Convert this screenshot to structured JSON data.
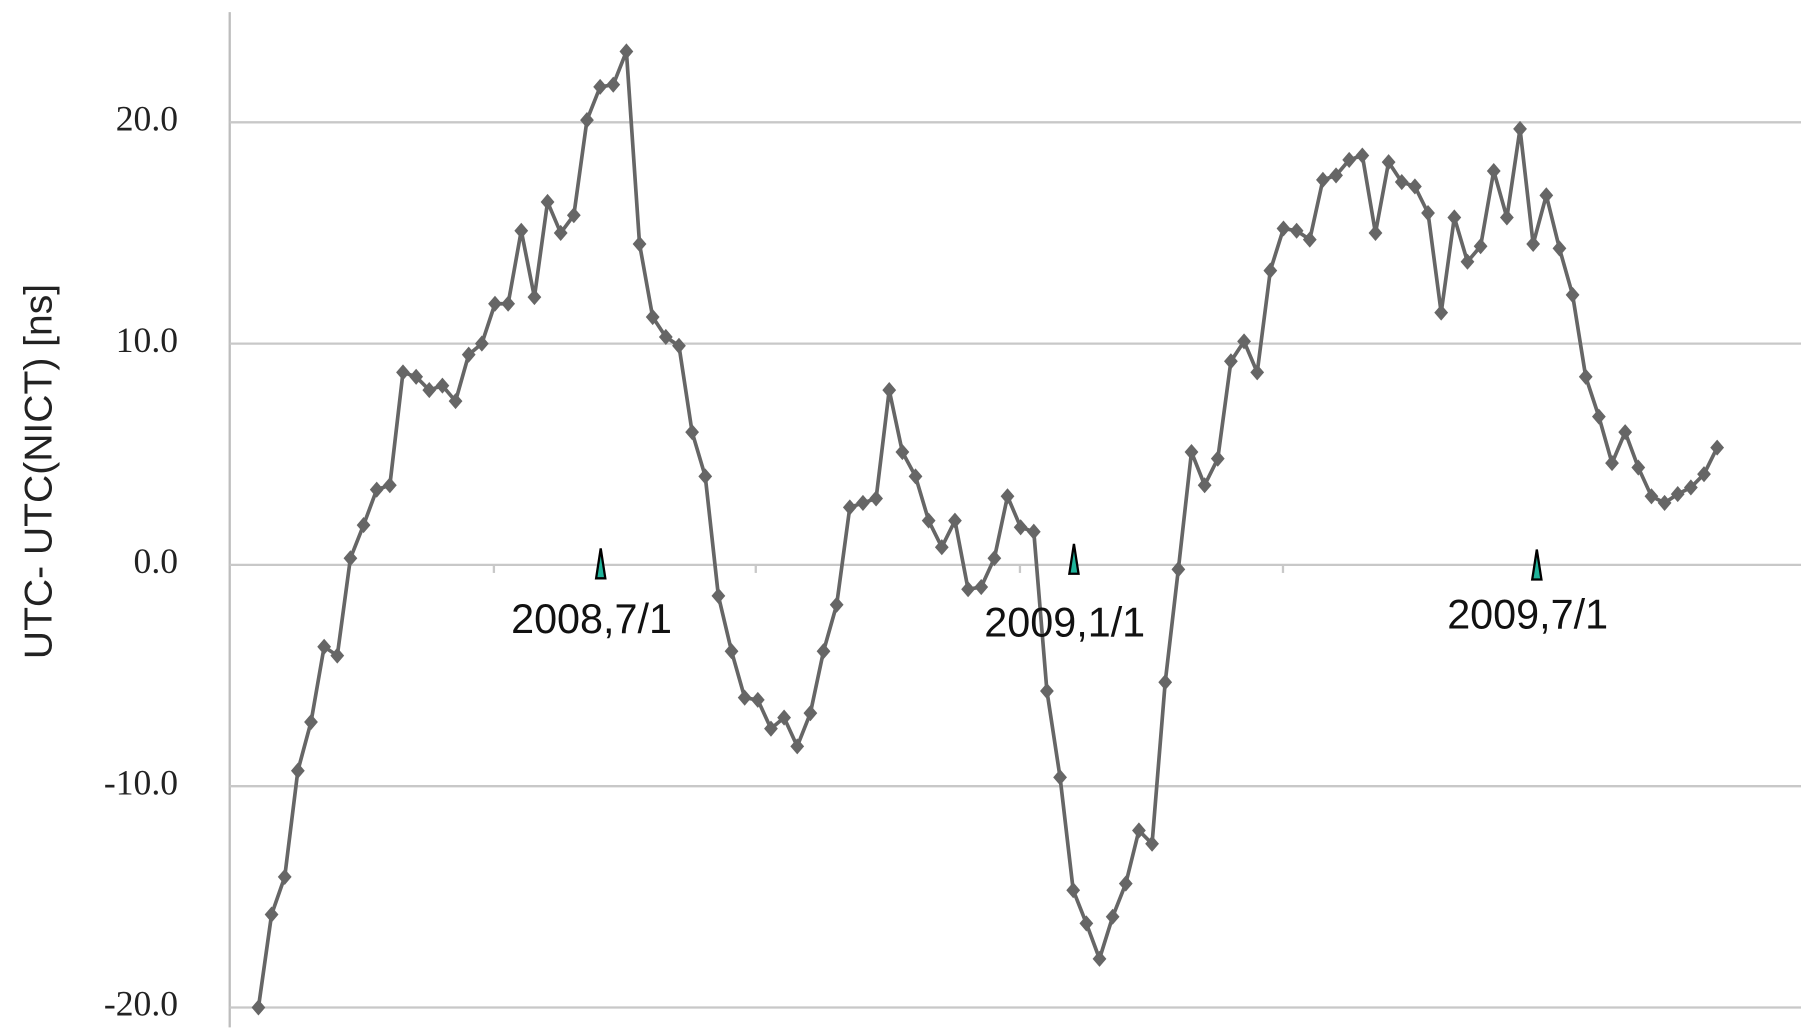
{
  "chart_data": {
    "type": "line",
    "ylabel": "UTC- UTC(NICT)  [ns]",
    "values": [
      -20,
      -15.8,
      -14.1,
      -9.3,
      -7.1,
      -3.7,
      -4.1,
      0.3,
      1.8,
      3.4,
      3.6,
      8.7,
      8.5,
      7.9,
      8.1,
      7.4,
      9.5,
      10,
      11.8,
      11.8,
      15.1,
      12.1,
      16.4,
      15,
      15.8,
      20.1,
      21.6,
      21.7,
      23.2,
      14.5,
      11.2,
      10.3,
      9.9,
      6,
      4,
      -1.4,
      -3.9,
      -6,
      -6.1,
      -7.4,
      -6.9,
      -8.2,
      -6.7,
      -3.9,
      -1.8,
      2.6,
      2.8,
      3,
      7.9,
      5.1,
      4,
      2,
      0.8,
      2,
      -1.1,
      -1,
      0.3,
      3.1,
      1.7,
      1.5,
      -5.7,
      -9.6,
      -14.7,
      -16.2,
      -17.8,
      -15.9,
      -14.4,
      -12,
      -12.6,
      -5.3,
      -0.2,
      5.1,
      3.6,
      4.8,
      9.2,
      10.1,
      8.7,
      13.3,
      15.2,
      15.1,
      14.7,
      17.4,
      17.6,
      18.3,
      18.5,
      15,
      18.2,
      17.3,
      17.1,
      15.9,
      11.4,
      15.7,
      13.7,
      14.4,
      17.8,
      15.7,
      19.7,
      14.5,
      16.7,
      14.3,
      12.2,
      8.5,
      6.7,
      4.6,
      6,
      4.4,
      3.1,
      2.8,
      3.2,
      3.5,
      4.1,
      5.3
    ],
    "color": "#666666",
    "ylim": [
      -20.9,
      25.5
    ],
    "yticks": [
      {
        "value": -20,
        "label": "-20.0"
      },
      {
        "value": -10,
        "label": "-10.0"
      },
      {
        "value": 0,
        "label": "0.0"
      },
      {
        "value": 10,
        "label": "10.0"
      },
      {
        "value": 20,
        "label": "20.0"
      }
    ],
    "grid": true,
    "annotations": [
      "2008,7/1",
      "2009,1/1",
      "2009,7/1"
    ]
  }
}
